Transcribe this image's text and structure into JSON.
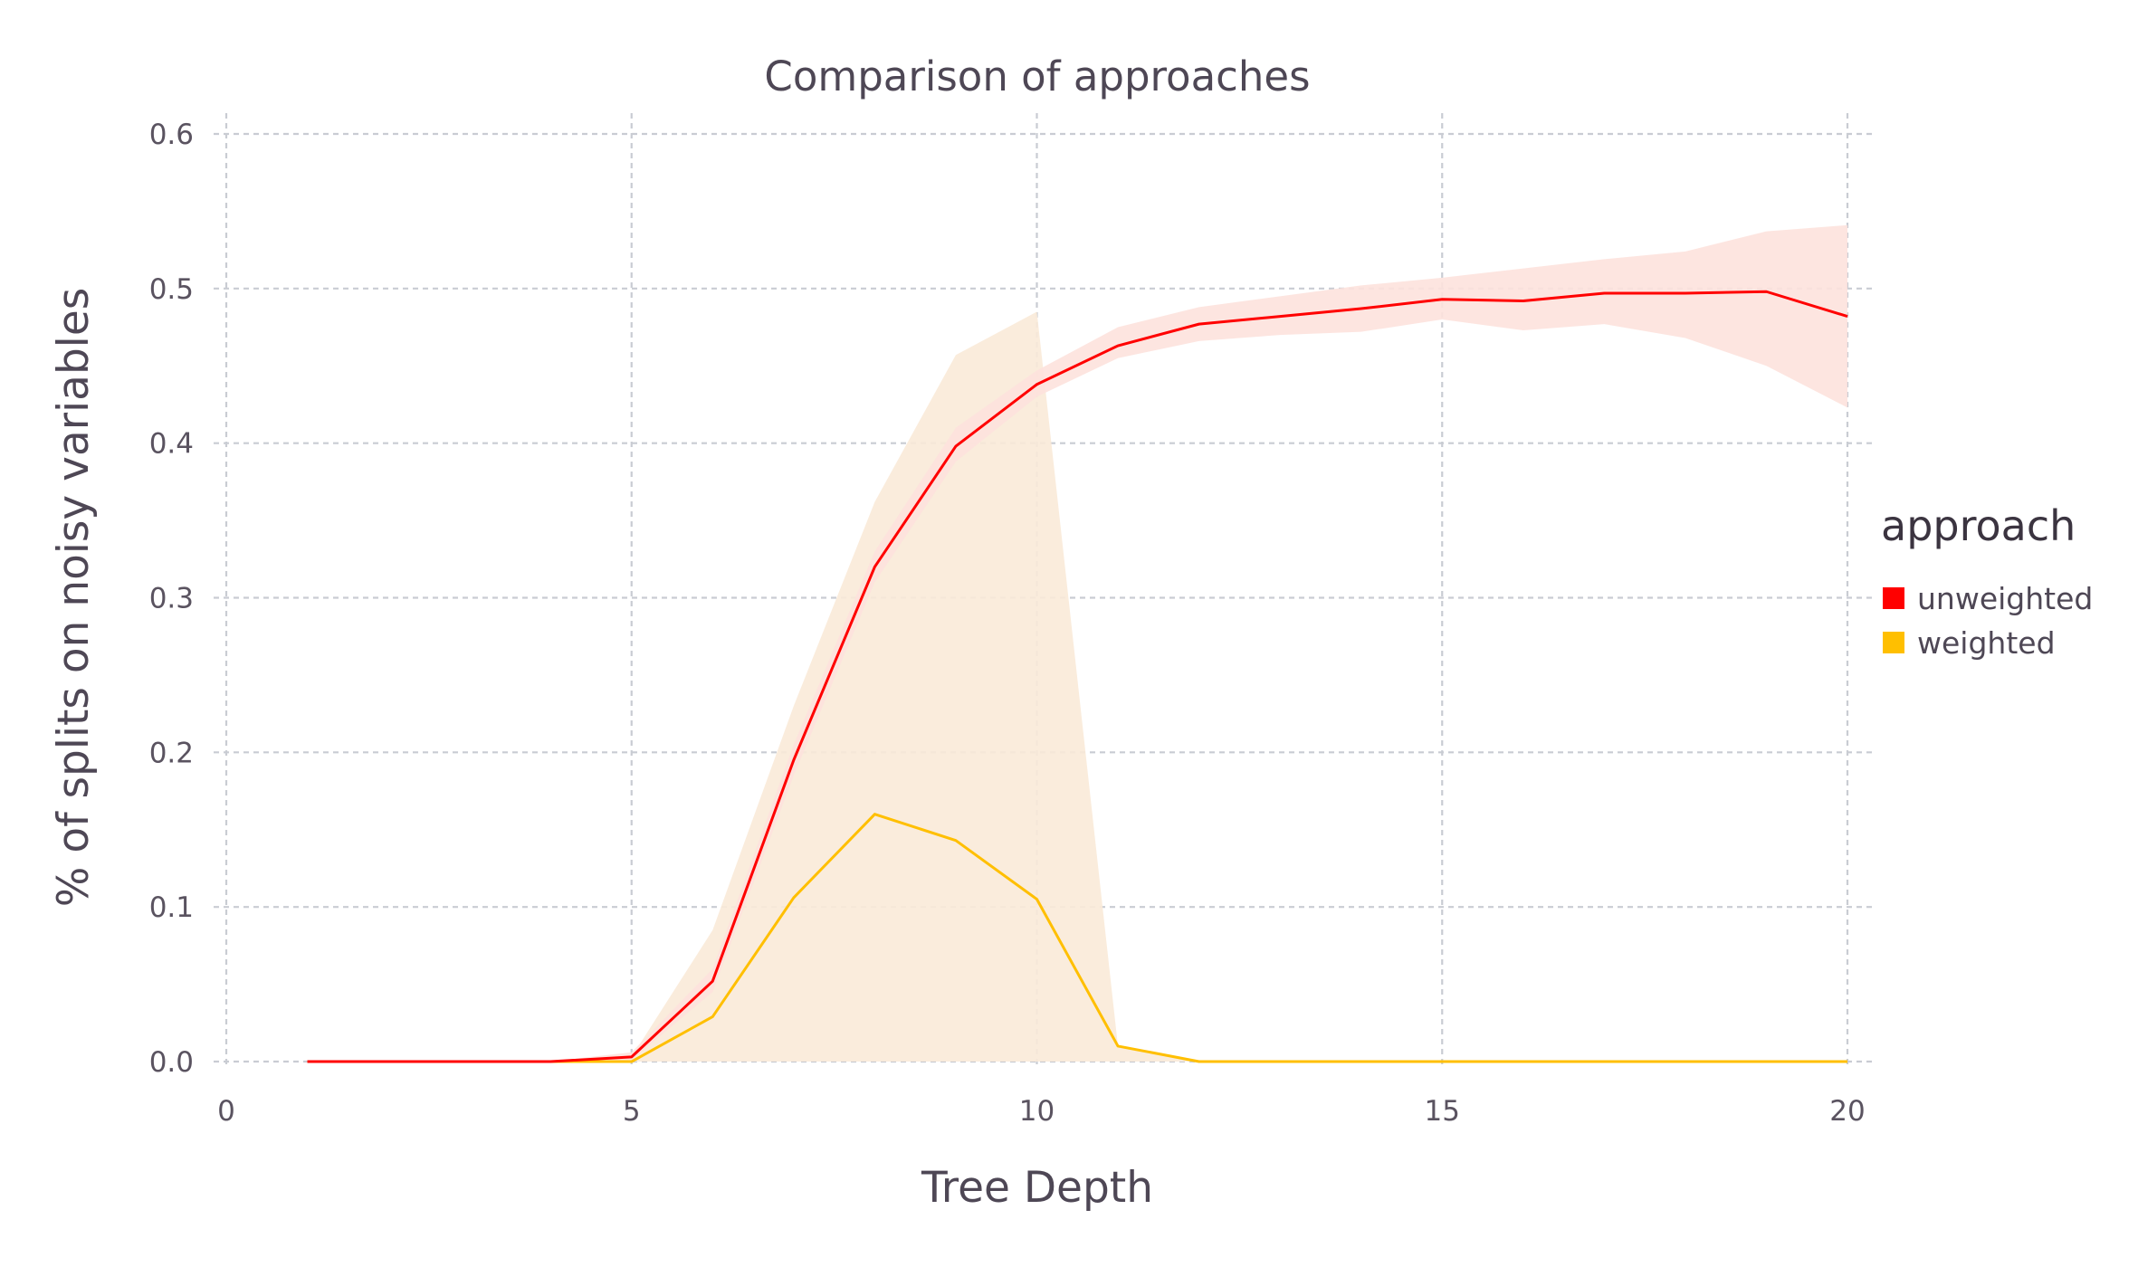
{
  "chart_data": {
    "type": "line",
    "title": "Comparison of approaches",
    "xlabel": "Tree Depth",
    "ylabel": "% of splits on noisy variables",
    "xlim": [
      0,
      20
    ],
    "ylim": [
      0,
      0.6
    ],
    "xticks": [
      "0",
      "5",
      "10",
      "15",
      "20"
    ],
    "xtick_values": [
      0,
      5,
      10,
      15,
      20
    ],
    "yticks": [
      "0.0",
      "0.1",
      "0.2",
      "0.3",
      "0.4",
      "0.5",
      "0.6"
    ],
    "ytick_values": [
      0,
      0.1,
      0.2,
      0.3,
      0.4,
      0.5,
      0.6
    ],
    "grid": true,
    "legend": {
      "title": "approach",
      "position": "right"
    },
    "series": [
      {
        "name": "unweighted",
        "color": "#ff0000",
        "band_color": "#fde2dd",
        "x": [
          1,
          2,
          3,
          4,
          5,
          6,
          7,
          8,
          9,
          10,
          11,
          12,
          13,
          14,
          15,
          16,
          17,
          18,
          19,
          20
        ],
        "y": [
          0,
          0,
          0,
          0,
          0.003,
          0.052,
          0.195,
          0.32,
          0.398,
          0.438,
          0.463,
          0.477,
          0.482,
          0.487,
          0.493,
          0.492,
          0.497,
          0.497,
          0.498,
          0.482
        ],
        "lower": [
          0,
          0,
          0,
          0,
          0.001,
          0.045,
          0.185,
          0.31,
          0.388,
          0.43,
          0.455,
          0.466,
          0.47,
          0.472,
          0.48,
          0.473,
          0.477,
          0.468,
          0.45,
          0.423
        ],
        "upper": [
          0,
          0,
          0,
          0,
          0.006,
          0.06,
          0.205,
          0.33,
          0.41,
          0.447,
          0.475,
          0.488,
          0.495,
          0.502,
          0.507,
          0.513,
          0.519,
          0.524,
          0.537,
          0.541
        ]
      },
      {
        "name": "weighted",
        "color": "#ffbf00",
        "band_color": "#f9ead8",
        "x": [
          1,
          2,
          3,
          4,
          5,
          6,
          7,
          8,
          9,
          10,
          11,
          12,
          13,
          14,
          15,
          16,
          17,
          18,
          19,
          20
        ],
        "y": [
          0,
          0,
          0,
          0,
          0,
          0.029,
          0.106,
          0.16,
          0.143,
          0.105,
          0.01,
          0,
          0,
          0,
          0,
          0,
          0,
          0,
          0,
          0
        ],
        "lower": [
          0,
          0,
          0,
          0,
          0,
          0,
          0,
          0,
          0,
          0,
          0,
          0,
          0,
          0,
          0,
          0,
          0,
          0,
          0,
          0
        ],
        "upper": [
          0,
          0,
          0,
          0,
          0.003,
          0.085,
          0.23,
          0.362,
          0.457,
          0.485,
          0.01,
          0,
          0,
          0,
          0,
          0,
          0,
          0,
          0,
          0
        ]
      }
    ]
  }
}
